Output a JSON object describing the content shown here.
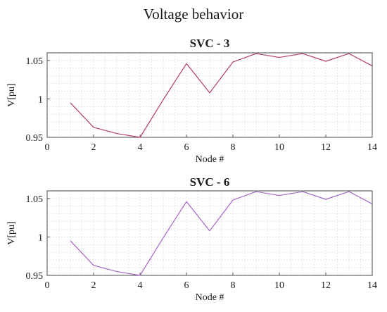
{
  "figure": {
    "title": "Voltage behavior"
  },
  "chart_data": [
    {
      "type": "line",
      "title": "SVC - 3",
      "xlabel": "Node #",
      "ylabel": "V[pu]",
      "xlim": [
        0,
        14
      ],
      "ylim": [
        0.95,
        1.06
      ],
      "xticks": [
        0,
        2,
        4,
        6,
        8,
        10,
        12,
        14
      ],
      "yticks": [
        0.95,
        1,
        1.05
      ],
      "xtick_labels": [
        "0",
        "2",
        "4",
        "6",
        "8",
        "10",
        "12",
        "14"
      ],
      "ytick_labels": [
        "0.95",
        "1",
        "1.05"
      ],
      "grid": true,
      "series": [
        {
          "color": "#b5405e",
          "x": [
            1,
            2,
            3,
            4,
            5,
            6,
            7,
            8,
            9,
            10,
            11,
            12,
            13,
            14
          ],
          "values": [
            0.995,
            0.963,
            0.955,
            0.95,
            0.999,
            1.046,
            1.008,
            1.048,
            1.059,
            1.054,
            1.059,
            1.049,
            1.059,
            1.043
          ]
        }
      ]
    },
    {
      "type": "line",
      "title": "SVC - 6",
      "xlabel": "Node #",
      "ylabel": "V[pu]",
      "xlim": [
        0,
        14
      ],
      "ylim": [
        0.95,
        1.06
      ],
      "xticks": [
        0,
        2,
        4,
        6,
        8,
        10,
        12,
        14
      ],
      "yticks": [
        0.95,
        1,
        1.05
      ],
      "xtick_labels": [
        "0",
        "2",
        "4",
        "6",
        "8",
        "10",
        "12",
        "14"
      ],
      "ytick_labels": [
        "0.95",
        "1",
        "1.05"
      ],
      "grid": true,
      "series": [
        {
          "color": "#a466c9",
          "x": [
            1,
            2,
            3,
            4,
            5,
            6,
            7,
            8,
            9,
            10,
            11,
            12,
            13,
            14
          ],
          "values": [
            0.995,
            0.963,
            0.955,
            0.95,
            0.999,
            1.046,
            1.008,
            1.048,
            1.059,
            1.054,
            1.059,
            1.049,
            1.059,
            1.043
          ]
        }
      ]
    }
  ]
}
